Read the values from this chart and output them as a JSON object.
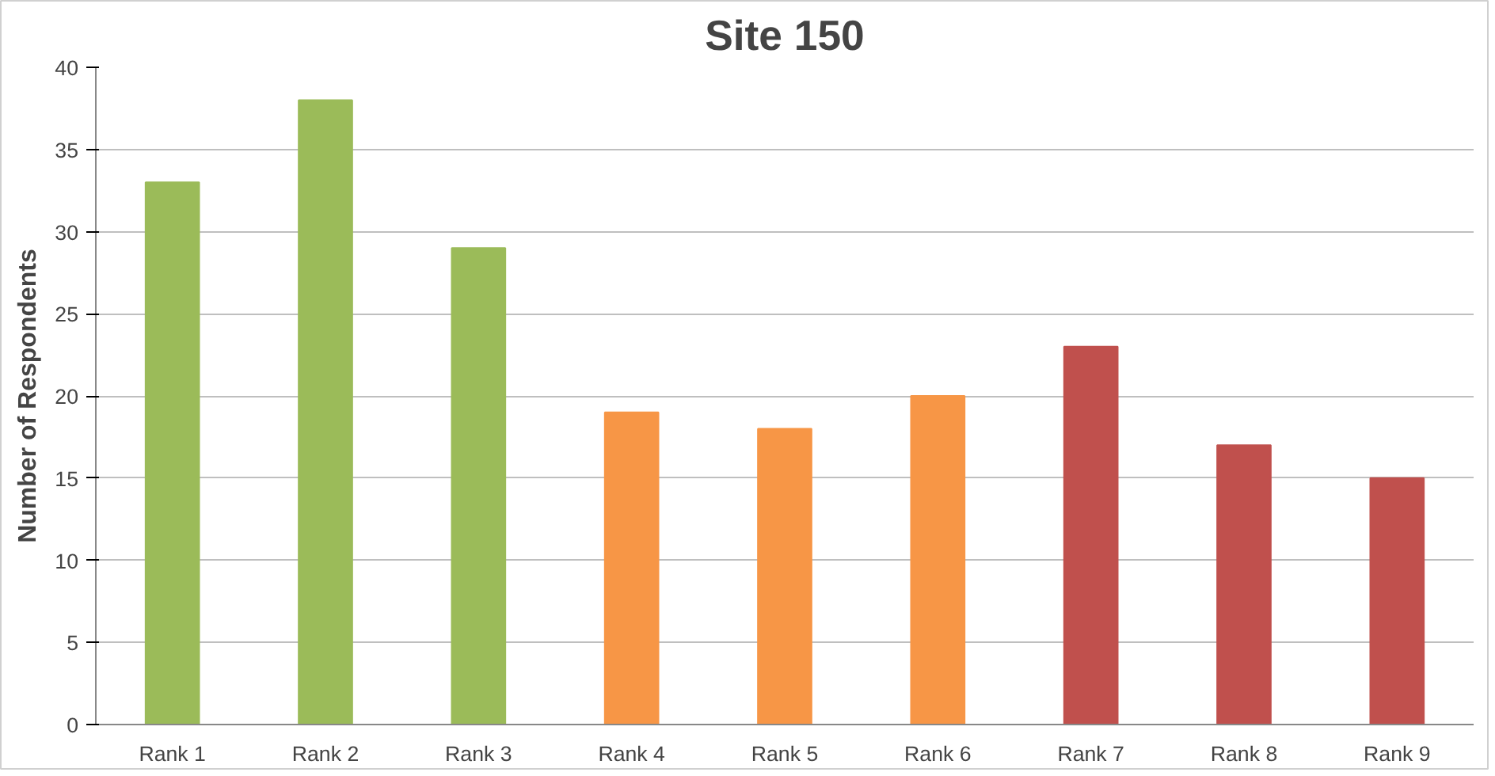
{
  "chart_data": {
    "type": "bar",
    "title": "Site 150",
    "ylabel": "Number of Respondents",
    "categories": [
      "Rank 1",
      "Rank 2",
      "Rank 3",
      "Rank 4",
      "Rank 5",
      "Rank 6",
      "Rank 7",
      "Rank 8",
      "Rank 9"
    ],
    "values": [
      33,
      38,
      29,
      19,
      18,
      20,
      23,
      17,
      15
    ],
    "colors": [
      "#9bbb59",
      "#9bbb59",
      "#9bbb59",
      "#f79646",
      "#f79646",
      "#f79646",
      "#c0504d",
      "#c0504d",
      "#c0504d"
    ],
    "ylim": [
      0,
      40
    ],
    "yticks": [
      0,
      5,
      10,
      15,
      20,
      25,
      30,
      35,
      40
    ],
    "grid": "y"
  }
}
